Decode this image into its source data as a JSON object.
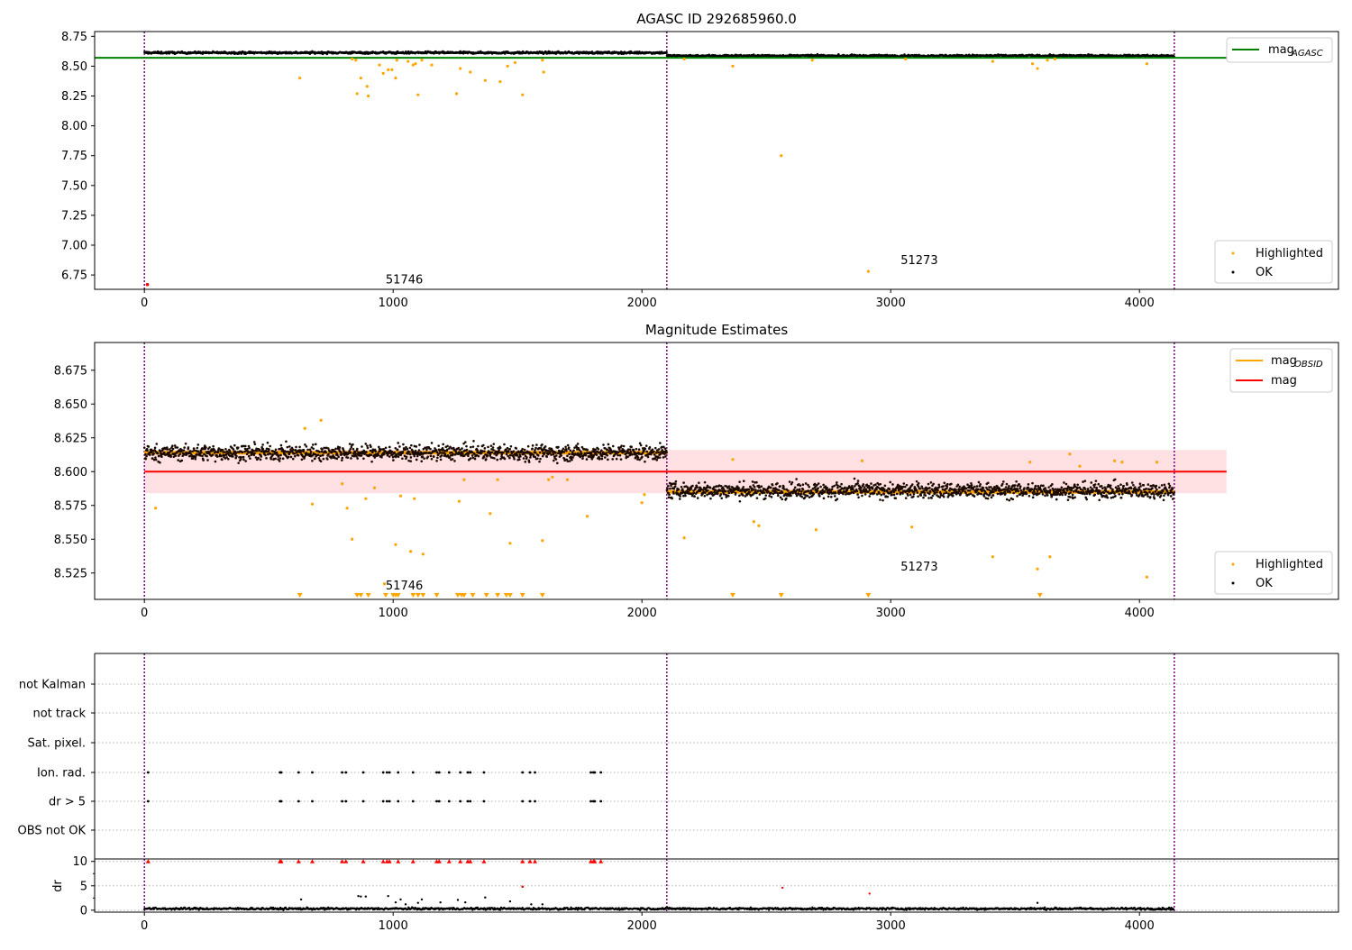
{
  "colors": {
    "ok": "#000000",
    "highlighted": "#FFA500",
    "agasc_line": "#008000",
    "obsid_line": "#FFA500",
    "mag_line": "#FF0000",
    "mag_band": "#FFE0E3",
    "obs_boundary": "#800080",
    "flag_red": "#FF0000"
  },
  "chart_data": [
    {
      "type": "scatter",
      "title": "AGASC ID 292685960.0",
      "xlim": [
        -200,
        4800
      ],
      "ylim": [
        6.63,
        8.79
      ],
      "xticks": [
        0,
        1000,
        2000,
        3000,
        4000
      ],
      "xtick_labels": [
        "0",
        "1000",
        "2000",
        "3000",
        "4000"
      ],
      "yticks": [
        6.75,
        7.0,
        7.25,
        7.5,
        7.75,
        8.0,
        8.25,
        8.5,
        8.75
      ],
      "ytick_labels": [
        "6.75",
        "7.00",
        "7.25",
        "7.50",
        "7.75",
        "8.00",
        "8.25",
        "8.50",
        "8.75"
      ],
      "obs_boundaries": [
        0,
        2100,
        4140
      ],
      "annotations": [
        {
          "text": "51746",
          "x": 970,
          "y": 6.68
        },
        {
          "text": "51273",
          "x": 3040,
          "y": 6.84
        }
      ],
      "lines": [
        {
          "name": "mag_AGASC",
          "label_main": "mag",
          "label_sub": "AGASC",
          "y": 8.57,
          "x": [
            -200,
            4350
          ],
          "color": "#008000"
        }
      ],
      "ok_segments": [
        {
          "x0": 0,
          "x1": 2100,
          "y": 8.613,
          "spread": 0.012
        },
        {
          "x0": 2100,
          "x1": 4140,
          "y": 8.587,
          "spread": 0.012
        }
      ],
      "highlighted": {
        "x": [
          625,
          835,
          850,
          855,
          870,
          895,
          900,
          945,
          960,
          980,
          995,
          1010,
          1015,
          1060,
          1080,
          1090,
          1100,
          1115,
          1155,
          1255,
          1270,
          1310,
          1370,
          1430,
          1460,
          1490,
          1520,
          1600,
          1605,
          2170,
          2365,
          2560,
          2685,
          2910,
          3060,
          3410,
          3570,
          3590,
          3630,
          3660,
          4030
        ],
        "y": [
          8.4,
          8.56,
          8.55,
          8.27,
          8.4,
          8.33,
          8.25,
          8.51,
          8.44,
          8.47,
          8.47,
          8.4,
          8.55,
          8.54,
          8.51,
          8.52,
          8.26,
          8.55,
          8.51,
          8.27,
          8.48,
          8.45,
          8.38,
          8.37,
          8.5,
          8.53,
          8.26,
          8.55,
          8.45,
          8.56,
          8.5,
          7.75,
          8.55,
          6.78,
          8.56,
          8.54,
          8.52,
          8.48,
          8.55,
          8.56,
          8.52
        ]
      },
      "red_points": {
        "x": [
          12
        ],
        "y": [
          6.67
        ]
      },
      "legends": [
        {
          "position": "top-right",
          "entries": [
            {
              "label_main": "mag",
              "label_sub": "AGASC",
              "kind": "line",
              "color": "#008000"
            }
          ]
        },
        {
          "position": "bottom-right",
          "entries": [
            {
              "label": "Highlighted",
              "kind": "dot",
              "color": "#FFA500"
            },
            {
              "label": "OK",
              "kind": "dot",
              "color": "#000000"
            }
          ]
        }
      ]
    },
    {
      "type": "scatter",
      "title": "Magnitude Estimates",
      "xlim": [
        -200,
        4800
      ],
      "ylim": [
        8.5055,
        8.6955
      ],
      "xticks": [
        0,
        1000,
        2000,
        3000,
        4000
      ],
      "xtick_labels": [
        "0",
        "1000",
        "2000",
        "3000",
        "4000"
      ],
      "yticks": [
        8.525,
        8.55,
        8.575,
        8.6,
        8.625,
        8.65,
        8.675
      ],
      "ytick_labels": [
        "8.525",
        "8.550",
        "8.575",
        "8.600",
        "8.625",
        "8.650",
        "8.675"
      ],
      "obs_boundaries": [
        0,
        2100,
        4140
      ],
      "annotations": [
        {
          "text": "51746",
          "x": 970,
          "y": 8.513
        },
        {
          "text": "51273",
          "x": 3040,
          "y": 8.527
        }
      ],
      "band": {
        "x0": 0,
        "x1": 4350,
        "y0": 8.584,
        "y1": 8.616
      },
      "lines": [
        {
          "name": "mag_OBSID_1",
          "y": 8.614,
          "x": [
            0,
            2100
          ],
          "color": "#FFA500"
        },
        {
          "name": "mag_OBSID_2",
          "y": 8.585,
          "x": [
            2100,
            4140
          ],
          "color": "#FFA500"
        },
        {
          "name": "mag",
          "y": 8.6,
          "x": [
            0,
            4350
          ],
          "color": "#FF0000"
        }
      ],
      "ok_segments": [
        {
          "x0": 0,
          "x1": 2100,
          "y": 8.614,
          "spread": 0.008
        },
        {
          "x0": 2100,
          "x1": 4140,
          "y": 8.586,
          "spread": 0.008
        }
      ],
      "highlighted": {
        "x": [
          45,
          645,
          675,
          710,
          795,
          815,
          835,
          890,
          925,
          965,
          1010,
          1030,
          1070,
          1085,
          1120,
          1265,
          1285,
          1390,
          1420,
          1470,
          1600,
          1625,
          1640,
          1700,
          1780,
          2000,
          2010,
          2170,
          2365,
          2450,
          2470,
          2700,
          2885,
          3085,
          3410,
          3560,
          3590,
          3640,
          3720,
          3760,
          3900,
          3930,
          4030,
          4070
        ],
        "y": [
          8.573,
          8.632,
          8.576,
          8.638,
          8.591,
          8.573,
          8.55,
          8.58,
          8.588,
          8.517,
          8.546,
          8.582,
          8.541,
          8.58,
          8.539,
          8.578,
          8.594,
          8.569,
          8.594,
          8.547,
          8.549,
          8.594,
          8.596,
          8.594,
          8.567,
          8.577,
          8.583,
          8.551,
          8.609,
          8.563,
          8.56,
          8.557,
          8.608,
          8.559,
          8.537,
          8.607,
          8.528,
          8.537,
          8.613,
          8.604,
          8.608,
          8.607,
          8.522,
          8.607
        ]
      },
      "below_range": {
        "x": [
          625,
          855,
          870,
          900,
          970,
          1000,
          1010,
          1020,
          1080,
          1100,
          1120,
          1175,
          1260,
          1275,
          1285,
          1320,
          1375,
          1420,
          1455,
          1470,
          1520,
          1600,
          2365,
          2560,
          2910,
          3600
        ]
      },
      "legends": [
        {
          "position": "top-right",
          "entries": [
            {
              "label_main": "mag",
              "label_sub": "OBSID",
              "kind": "line",
              "color": "#FFA500"
            },
            {
              "label": "mag",
              "kind": "line",
              "color": "#FF0000"
            }
          ]
        },
        {
          "position": "bottom-right",
          "entries": [
            {
              "label": "Highlighted",
              "kind": "dot",
              "color": "#FFA500"
            },
            {
              "label": "OK",
              "kind": "dot",
              "color": "#000000"
            }
          ]
        }
      ]
    },
    {
      "type": "scatter",
      "title": "",
      "xlim": [
        -200,
        4800
      ],
      "categories": [
        "OBS not OK",
        "dr > 5",
        "Ion. rad.",
        "Sat. pixel.",
        "not track",
        "not Kalman"
      ],
      "obs_boundaries": [
        0,
        2100,
        4140
      ],
      "flag_points": {
        "dr > 5": [
          15,
          545,
          550,
          620,
          675,
          795,
          810,
          880,
          960,
          975,
          985,
          1020,
          1080,
          1175,
          1185,
          1225,
          1270,
          1300,
          1310,
          1365,
          1520,
          1550,
          1570,
          1795,
          1805,
          1810,
          1835
        ],
        "Ion. rad.": [
          15,
          545,
          550,
          620,
          675,
          795,
          810,
          880,
          960,
          975,
          985,
          1020,
          1080,
          1175,
          1185,
          1225,
          1270,
          1300,
          1310,
          1365,
          1520,
          1550,
          1570,
          1795,
          1805,
          1810,
          1835
        ]
      }
    },
    {
      "type": "scatter",
      "title": "",
      "ylabel": "dr",
      "xlim": [
        -200,
        4800
      ],
      "ylim": [
        -0.4,
        10.5
      ],
      "xticks": [
        0,
        1000,
        2000,
        3000,
        4000
      ],
      "xtick_labels": [
        "0",
        "1000",
        "2000",
        "3000",
        "4000"
      ],
      "yticks": [
        0,
        5,
        10
      ],
      "ytick_labels": [
        "0",
        "5",
        "10"
      ],
      "obs_boundaries": [
        0,
        2100,
        4140
      ],
      "ok_segment": {
        "x0": 0,
        "x1": 4140,
        "y": 0.3,
        "spread": 0.25
      },
      "scattered": {
        "x": [
          630,
          860,
          870,
          890,
          980,
          1010,
          1030,
          1050,
          1100,
          1115,
          1190,
          1260,
          1290,
          1370,
          1470,
          1520,
          1555,
          1600,
          3590
        ],
        "y": [
          2.2,
          2.9,
          2.8,
          2.8,
          2.9,
          1.6,
          2.2,
          1.2,
          1.5,
          2.2,
          1.6,
          2.1,
          1.6,
          2.6,
          1.8,
          4.8,
          1.2,
          1.2,
          1.5
        ]
      },
      "red_small": {
        "x": [
          1520,
          2565,
          2915
        ],
        "y": [
          4.8,
          4.6,
          3.4
        ]
      },
      "capped": {
        "x": [
          15,
          545,
          550,
          620,
          675,
          795,
          810,
          880,
          960,
          975,
          985,
          1020,
          1080,
          1175,
          1185,
          1225,
          1270,
          1300,
          1310,
          1365,
          1520,
          1550,
          1570,
          1795,
          1805,
          1810,
          1835
        ],
        "y": 10
      }
    }
  ]
}
